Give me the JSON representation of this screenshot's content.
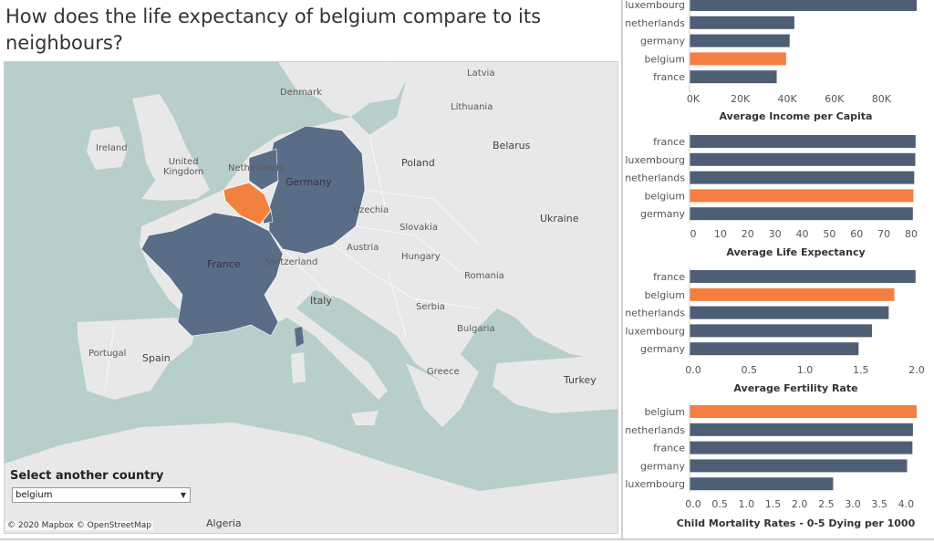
{
  "title": "How does the life expectancy of belgium compare to its neighbours?",
  "map": {
    "labels": {
      "latvia": "Latvia",
      "denmark": "Denmark",
      "lithuania": "Lithuania",
      "ireland": "Ireland",
      "united_kingdom": "United\nKingdom",
      "belarus": "Belarus",
      "netherlands": "Netherlands",
      "poland": "Poland",
      "germany": "Germany",
      "czechia": "Czechia",
      "slovakia": "Slovakia",
      "ukraine": "Ukraine",
      "austria": "Austria",
      "hungary": "Hungary",
      "france": "France",
      "switzerland": "Switzerland",
      "romania": "Romania",
      "italy": "Italy",
      "serbia": "Serbia",
      "bulgaria": "Bulgaria",
      "portugal": "Portugal",
      "spain": "Spain",
      "greece": "Greece",
      "turkey": "Turkey",
      "algeria": "Algeria"
    },
    "attribution": "© 2020 Mapbox © OpenStreetMap",
    "colors": {
      "water": "#b8cecb",
      "land": "#e8e8e8",
      "highlight": "#f28140",
      "neighbour": "#5a6d87"
    }
  },
  "selector": {
    "label": "Select another country",
    "value": "belgium"
  },
  "colors": {
    "default_bar": "#4e5e75",
    "highlight_bar": "#f57f42"
  },
  "chart_data": [
    {
      "type": "bar",
      "orientation": "horizontal",
      "categories": [
        "luxembourg",
        "netherlands",
        "germany",
        "belgium",
        "france"
      ],
      "values": [
        95000,
        43000,
        41000,
        39500,
        35500
      ],
      "highlight": "belgium",
      "xlabel": "Average Income per Capita",
      "xlim": [
        0,
        95000
      ],
      "ticks": [
        0,
        20000,
        40000,
        60000,
        80000
      ],
      "tick_labels": [
        "0K",
        "20K",
        "40K",
        "60K",
        "80K"
      ]
    },
    {
      "type": "bar",
      "orientation": "horizontal",
      "categories": [
        "france",
        "luxembourg",
        "netherlands",
        "belgium",
        "germany"
      ],
      "values": [
        81.6,
        81.5,
        81.1,
        80.8,
        80.6
      ],
      "highlight": "belgium",
      "xlabel": "Average Life Expectancy",
      "xlim": [
        0,
        82
      ],
      "ticks": [
        0,
        10,
        20,
        30,
        40,
        50,
        60,
        70,
        80
      ],
      "tick_labels": [
        "0",
        "10",
        "20",
        "30",
        "40",
        "50",
        "60",
        "70",
        "80"
      ]
    },
    {
      "type": "bar",
      "orientation": "horizontal",
      "categories": [
        "france",
        "belgium",
        "netherlands",
        "luxembourg",
        "germany"
      ],
      "values": [
        1.99,
        1.8,
        1.75,
        1.6,
        1.48
      ],
      "highlight": "belgium",
      "xlabel": "Average Fertility Rate",
      "xlim": [
        0,
        2.0
      ],
      "ticks": [
        0,
        0.5,
        1.0,
        1.5,
        2.0
      ],
      "tick_labels": [
        "0.0",
        "0.5",
        "1.0",
        "1.5",
        "2.0"
      ]
    },
    {
      "type": "bar",
      "orientation": "horizontal",
      "categories": [
        "belgium",
        "netherlands",
        "france",
        "germany",
        "luxembourg"
      ],
      "values": [
        4.2,
        4.13,
        4.12,
        4.02,
        2.63
      ],
      "highlight": "belgium",
      "xlabel": "Child Mortality Rates - 0-5 Dying per 1000",
      "xlim": [
        0,
        4.2
      ],
      "ticks": [
        0,
        0.5,
        1.0,
        1.5,
        2.0,
        2.5,
        3.0,
        3.5,
        4.0
      ],
      "tick_labels": [
        "0.0",
        "0.5",
        "1.0",
        "1.5",
        "2.0",
        "2.5",
        "3.0",
        "3.5",
        "4.0"
      ]
    }
  ]
}
